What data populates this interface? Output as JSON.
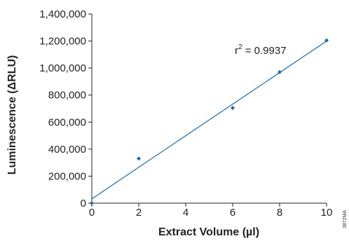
{
  "chart_data": {
    "type": "scatter",
    "title": "",
    "xlabel": "Extract Volume (µl)",
    "ylabel": "Luminescence (ΔRLU)",
    "xlim": [
      0,
      10
    ],
    "ylim": [
      0,
      1400000
    ],
    "x_ticks": [
      0,
      2,
      4,
      6,
      8,
      10
    ],
    "y_ticks": [
      0,
      200000,
      400000,
      600000,
      800000,
      1000000,
      1200000,
      1400000
    ],
    "x_tick_labels": [
      "0",
      "2",
      "4",
      "6",
      "8",
      "10"
    ],
    "y_tick_labels": [
      "0",
      "200,000",
      "400,000",
      "600,000",
      "800,000",
      "1,000,000",
      "1,200,000",
      "1,400,000"
    ],
    "grid": false,
    "series": [
      {
        "x": [
          0,
          2,
          6,
          8,
          10
        ],
        "y": [
          0,
          330000,
          705000,
          970000,
          1205000
        ],
        "color": "#1f6aa5"
      }
    ],
    "trendline": {
      "type": "linear",
      "x": [
        0,
        10
      ],
      "y": [
        32000,
        1200000
      ],
      "color": "#1f6aa5"
    },
    "annotation": {
      "r2_prefix": "r",
      "r2_superscript": "2",
      "r2_value": " = 0.9937"
    },
    "figure_code": "3872MA"
  }
}
